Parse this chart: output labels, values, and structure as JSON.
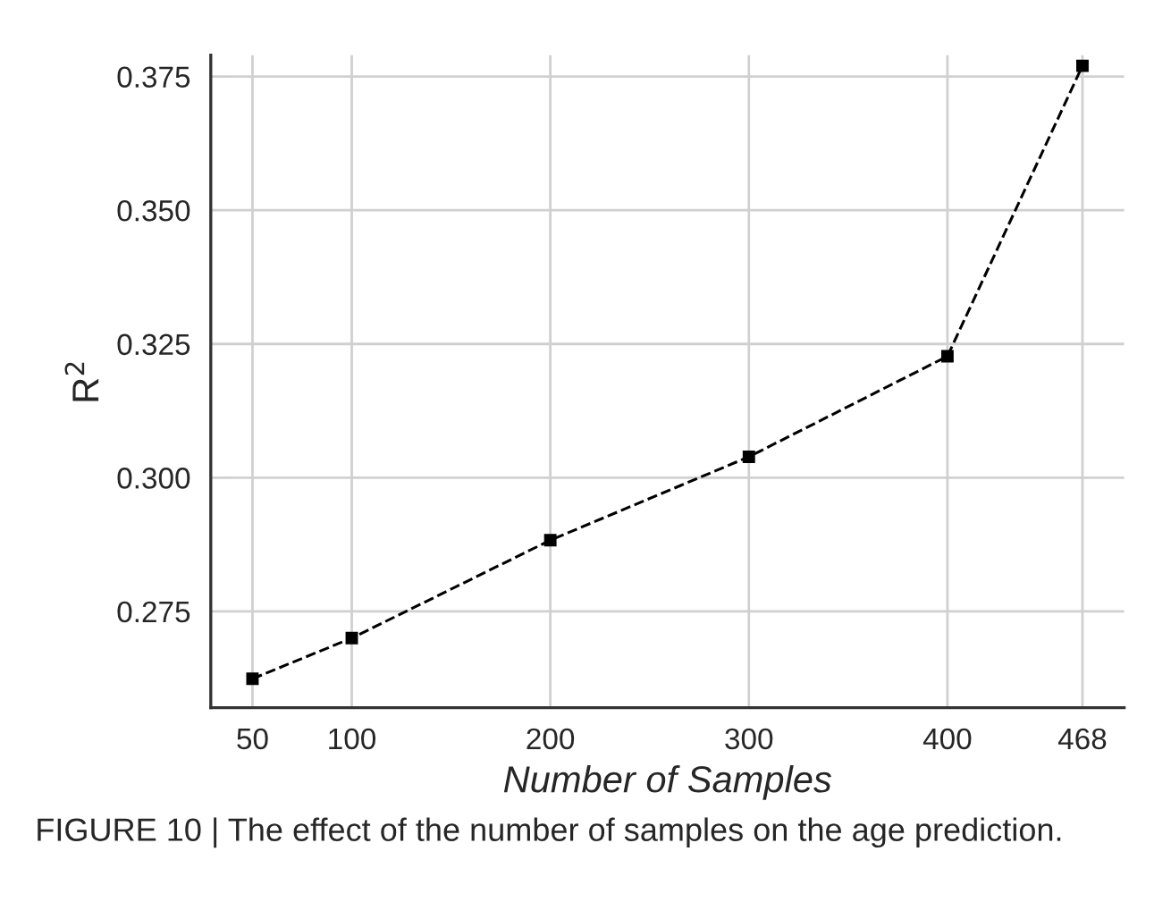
{
  "chart_data": {
    "type": "line",
    "xlabel": "Number of Samples",
    "ylabel": "R$^{2}$",
    "x": [
      50,
      100,
      200,
      300,
      400,
      468
    ],
    "series": [
      {
        "color": "#000000",
        "values": [
          0.2624,
          0.27,
          0.2883,
          0.3039,
          0.3227,
          0.377
        ]
      }
    ],
    "xlim": [
      29,
      489
    ],
    "xticks": [
      50,
      100,
      200,
      300,
      400,
      468
    ],
    "ylim": [
      0.257,
      0.379
    ],
    "yticks": [
      0.275,
      {
        "value": 0.3,
        "label": "0.300"
      },
      0.325,
      {
        "value": 0.35,
        "label": "0.350"
      },
      0.375
    ],
    "grid": true,
    "marker": "square",
    "line_style": "dashed",
    "legend": false,
    "annotations": [
      "FIGURE 10 | The effect of the number of samples on the age prediction."
    ]
  }
}
